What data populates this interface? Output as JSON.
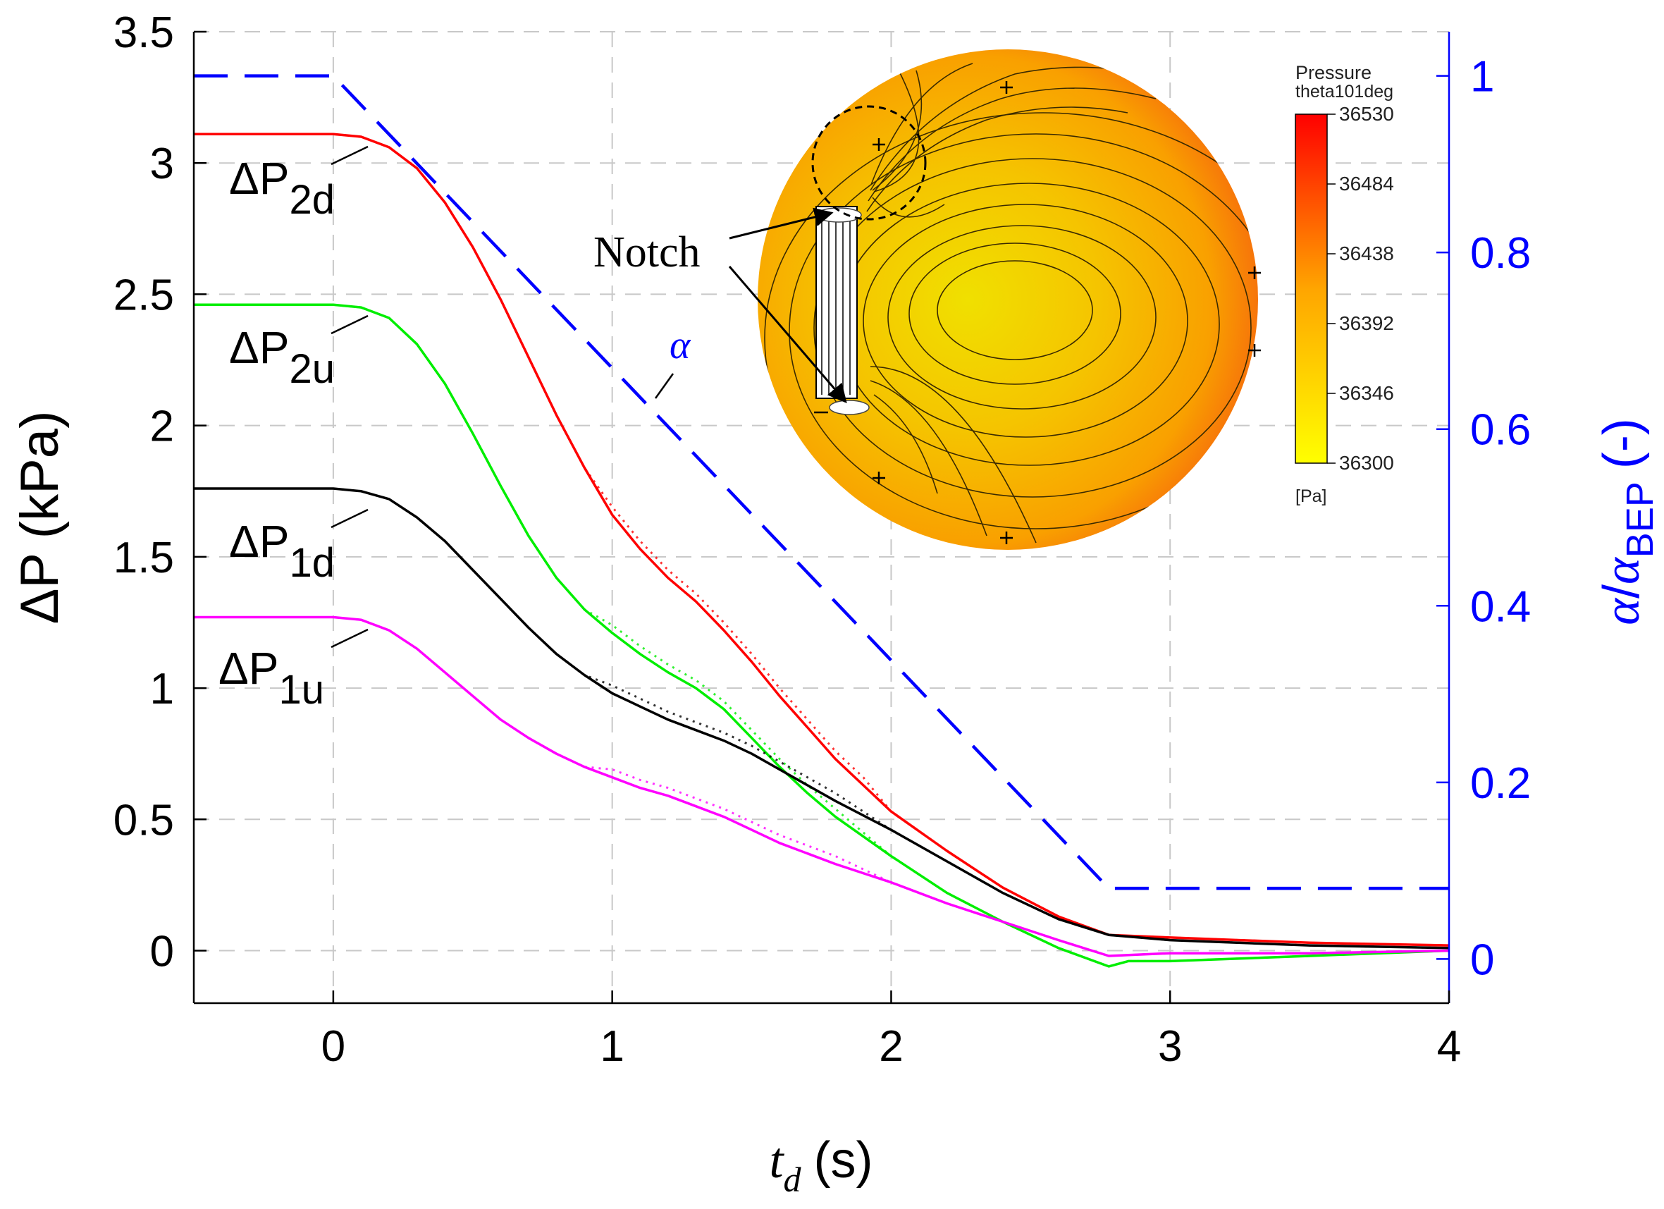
{
  "chart_data": {
    "type": "line",
    "xlabel": {
      "main": "t",
      "sub": "d",
      "unit": "(s)"
    },
    "ylabel": "ΔP (kPa)",
    "y2label": {
      "alpha": "α",
      "sep": "/",
      "alpha2": "α",
      "sub": "BEP",
      "unit": "(-)"
    },
    "xlim": [
      -0.5,
      4
    ],
    "ylim": [
      -0.2,
      3.5
    ],
    "y2lim": [
      -0.05,
      1.05
    ],
    "xticks": [
      0,
      1,
      2,
      3,
      4
    ],
    "xtick_labels": [
      "0",
      "1",
      "2",
      "3",
      "4"
    ],
    "yticks": [
      0,
      0.5,
      1,
      1.5,
      2,
      2.5,
      3,
      3.5
    ],
    "ytick_labels": [
      "0",
      "0.5",
      "1",
      "1.5",
      "2",
      "2.5",
      "3",
      "3.5"
    ],
    "y2ticks": [
      0,
      0.2,
      0.4,
      0.6,
      0.8,
      1
    ],
    "y2tick_labels": [
      "0",
      "0.2",
      "0.4",
      "0.6",
      "0.8",
      "1"
    ],
    "grid": true,
    "series": [
      {
        "name": "ΔP2d",
        "label_main": "ΔP",
        "label_sub": "2d",
        "color": "#ff0000",
        "axis": "left",
        "x": [
          -0.5,
          0,
          0.1,
          0.2,
          0.3,
          0.4,
          0.5,
          0.6,
          0.7,
          0.8,
          0.9,
          1.0,
          1.1,
          1.2,
          1.3,
          1.4,
          1.5,
          1.6,
          1.7,
          1.8,
          1.9,
          2.0,
          2.2,
          2.4,
          2.6,
          2.78,
          3.0,
          3.5,
          4.0
        ],
        "y": [
          3.11,
          3.11,
          3.1,
          3.06,
          2.98,
          2.85,
          2.68,
          2.48,
          2.26,
          2.04,
          1.84,
          1.66,
          1.53,
          1.42,
          1.33,
          1.22,
          1.1,
          0.97,
          0.85,
          0.73,
          0.63,
          0.53,
          0.38,
          0.24,
          0.13,
          0.06,
          0.05,
          0.03,
          0.02
        ]
      },
      {
        "name": "ΔP2u",
        "label_main": "ΔP",
        "label_sub": "2u",
        "color": "#00ee00",
        "axis": "left",
        "x": [
          -0.5,
          0,
          0.1,
          0.2,
          0.3,
          0.4,
          0.5,
          0.6,
          0.7,
          0.8,
          0.9,
          1.0,
          1.1,
          1.2,
          1.3,
          1.4,
          1.5,
          1.6,
          1.7,
          1.8,
          2.0,
          2.2,
          2.4,
          2.6,
          2.78,
          2.85,
          3.0,
          3.5,
          4.0
        ],
        "y": [
          2.46,
          2.46,
          2.45,
          2.41,
          2.31,
          2.16,
          1.97,
          1.77,
          1.58,
          1.42,
          1.3,
          1.21,
          1.13,
          1.06,
          1.0,
          0.92,
          0.81,
          0.7,
          0.6,
          0.51,
          0.36,
          0.22,
          0.11,
          0.01,
          -0.06,
          -0.04,
          -0.04,
          -0.02,
          0.0
        ]
      },
      {
        "name": "ΔP1d",
        "label_main": "ΔP",
        "label_sub": "1d",
        "color": "#000000",
        "axis": "left",
        "x": [
          -0.5,
          0,
          0.1,
          0.2,
          0.3,
          0.4,
          0.5,
          0.6,
          0.7,
          0.8,
          0.9,
          1.0,
          1.1,
          1.2,
          1.3,
          1.4,
          1.5,
          1.6,
          1.7,
          1.8,
          2.0,
          2.2,
          2.4,
          2.6,
          2.78,
          3.0,
          3.5,
          4.0
        ],
        "y": [
          1.76,
          1.76,
          1.75,
          1.72,
          1.65,
          1.56,
          1.45,
          1.34,
          1.23,
          1.13,
          1.05,
          0.98,
          0.93,
          0.88,
          0.84,
          0.8,
          0.75,
          0.69,
          0.63,
          0.57,
          0.46,
          0.34,
          0.22,
          0.12,
          0.06,
          0.04,
          0.02,
          0.01
        ]
      },
      {
        "name": "ΔP1u",
        "label_main": "ΔP",
        "label_sub": "1u",
        "color": "#ff00ff",
        "axis": "left",
        "x": [
          -0.5,
          0,
          0.1,
          0.2,
          0.3,
          0.4,
          0.5,
          0.6,
          0.7,
          0.8,
          0.9,
          1.0,
          1.1,
          1.2,
          1.3,
          1.4,
          1.5,
          1.6,
          1.7,
          1.8,
          2.0,
          2.2,
          2.4,
          2.6,
          2.78,
          3.0,
          3.5,
          4.0
        ],
        "y": [
          1.27,
          1.27,
          1.26,
          1.22,
          1.15,
          1.06,
          0.97,
          0.88,
          0.81,
          0.75,
          0.7,
          0.66,
          0.62,
          0.59,
          0.55,
          0.51,
          0.46,
          0.41,
          0.37,
          0.33,
          0.26,
          0.18,
          0.11,
          0.04,
          -0.02,
          -0.01,
          -0.01,
          0.0
        ]
      },
      {
        "name": "alpha",
        "label": "α",
        "color": "#0000ff",
        "axis": "right",
        "style": "dashed",
        "x": [
          -0.5,
          0,
          2.78,
          4.0
        ],
        "y": [
          1.0,
          1.0,
          0.08,
          0.08
        ]
      }
    ],
    "inset": {
      "title_line1": "Pressure",
      "title_line2": "theta101deg",
      "unit": "[Pa]",
      "colorbar_ticks": [
        "36530",
        "36484",
        "36438",
        "36392",
        "36346",
        "36300"
      ],
      "colormap": [
        "#ffff00",
        "#ffa500",
        "#ff0000"
      ],
      "annotation": "Notch"
    }
  }
}
